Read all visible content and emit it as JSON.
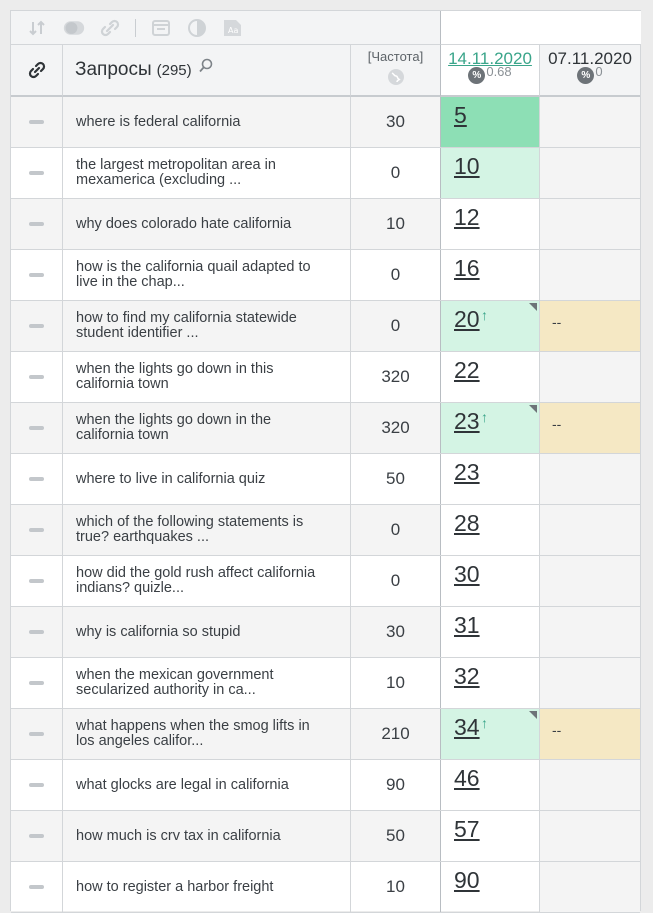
{
  "toolbar": {
    "icons": [
      "sort-icon",
      "toggle-icon",
      "unlink-icon",
      "calendar-icon",
      "contrast-icon",
      "font-size-icon"
    ]
  },
  "header": {
    "title": "Запросы",
    "count": "(295)",
    "freq_label": "[Частота]",
    "date1": "14.11.2020",
    "date1_pct": "0.68",
    "date2": "07.11.2020",
    "date2_pct": "0",
    "pct_symbol": "%"
  },
  "colors": {
    "green_strong": "#8ddfb5",
    "green_light": "#d4f4e4",
    "beige": "#f5e8c4",
    "accent": "#3aa58a"
  },
  "rows": [
    {
      "query": "where is federal california",
      "freq": "30",
      "pos": "5",
      "up": "",
      "prev": "",
      "pos_style": "green-strong",
      "prev_style": "",
      "shade": true
    },
    {
      "query": "the largest metropolitan area in mexamerica (excluding ...",
      "freq": "0",
      "pos": "10",
      "up": "",
      "prev": "",
      "pos_style": "green-light",
      "prev_style": "",
      "shade": false
    },
    {
      "query": "why does colorado hate california",
      "freq": "10",
      "pos": "12",
      "up": "",
      "prev": "",
      "pos_style": "",
      "prev_style": "",
      "shade": true
    },
    {
      "query": "how is the california quail adapted to live in the chap...",
      "freq": "0",
      "pos": "16",
      "up": "",
      "prev": "",
      "pos_style": "",
      "prev_style": "",
      "shade": false
    },
    {
      "query": "how to find my california statewide student identifier ...",
      "freq": "0",
      "pos": "20",
      "up": "↑",
      "prev": "--",
      "pos_style": "green-light",
      "prev_style": "beige",
      "shade": true
    },
    {
      "query": "when the lights go down in this california town",
      "freq": "320",
      "pos": "22",
      "up": "",
      "prev": "",
      "pos_style": "",
      "prev_style": "",
      "shade": false
    },
    {
      "query": "when the lights go down in the california town",
      "freq": "320",
      "pos": "23",
      "up": "↑",
      "prev": "--",
      "pos_style": "green-light",
      "prev_style": "beige",
      "shade": true
    },
    {
      "query": "where to live in california quiz",
      "freq": "50",
      "pos": "23",
      "up": "",
      "prev": "",
      "pos_style": "",
      "prev_style": "",
      "shade": false
    },
    {
      "query": "which of the following statements is true? earthquakes ...",
      "freq": "0",
      "pos": "28",
      "up": "",
      "prev": "",
      "pos_style": "",
      "prev_style": "",
      "shade": true
    },
    {
      "query": "how did the gold rush affect california indians? quizle...",
      "freq": "0",
      "pos": "30",
      "up": "",
      "prev": "",
      "pos_style": "",
      "prev_style": "",
      "shade": false
    },
    {
      "query": "why is california so stupid",
      "freq": "30",
      "pos": "31",
      "up": "",
      "prev": "",
      "pos_style": "",
      "prev_style": "",
      "shade": true
    },
    {
      "query": "when the mexican government secularized authority in ca...",
      "freq": "10",
      "pos": "32",
      "up": "",
      "prev": "",
      "pos_style": "",
      "prev_style": "",
      "shade": false
    },
    {
      "query": "what happens when the smog lifts in los angeles califor...",
      "freq": "210",
      "pos": "34",
      "up": "↑",
      "prev": "--",
      "pos_style": "green-light",
      "prev_style": "beige",
      "shade": true
    },
    {
      "query": "what glocks are legal in california",
      "freq": "90",
      "pos": "46",
      "up": "",
      "prev": "",
      "pos_style": "",
      "prev_style": "",
      "shade": false
    },
    {
      "query": "how much is crv tax in california",
      "freq": "50",
      "pos": "57",
      "up": "",
      "prev": "",
      "pos_style": "",
      "prev_style": "",
      "shade": true
    },
    {
      "query": "how to register a harbor freight",
      "freq": "10",
      "pos": "90",
      "up": "",
      "prev": "",
      "pos_style": "",
      "prev_style": "",
      "shade": false
    }
  ]
}
